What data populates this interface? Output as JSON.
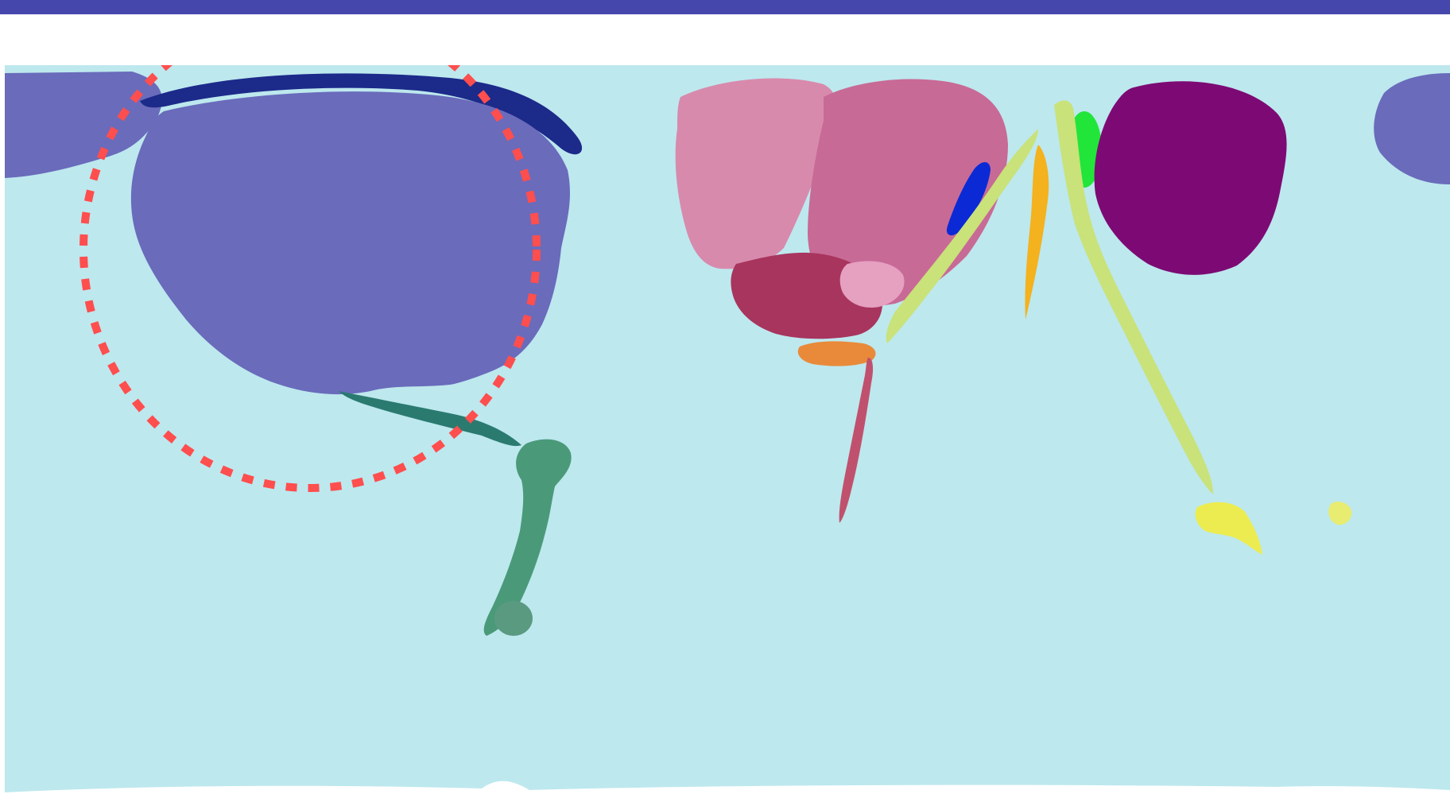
{
  "slide": {
    "accent_color": "#4647ac",
    "background_color": "#ffffff"
  },
  "map": {
    "type": "cartogram world map",
    "ocean_color": "#bde8ee",
    "regions": [
      {
        "id": "north-america",
        "color": "#6a6bbb"
      },
      {
        "id": "north-america-arctic",
        "color": "#1c2a8a"
      },
      {
        "id": "alaska",
        "color": "#6a6bbb"
      },
      {
        "id": "east-russia-edge",
        "color": "#6a6bbb"
      },
      {
        "id": "central-america",
        "color": "#2a7a70"
      },
      {
        "id": "south-america",
        "color": "#4a9a7a"
      },
      {
        "id": "falklands",
        "color": "#5a9a80"
      },
      {
        "id": "western-europe",
        "color": "#d88aac"
      },
      {
        "id": "central-europe",
        "color": "#c86a96"
      },
      {
        "id": "southern-europe",
        "color": "#a8355e"
      },
      {
        "id": "eastern-europe",
        "color": "#e6a0c0"
      },
      {
        "id": "middle-east-blue",
        "color": "#0b2ad6"
      },
      {
        "id": "central-asia-green",
        "color": "#22e53a"
      },
      {
        "id": "east-asia",
        "color": "#7d0a74"
      },
      {
        "id": "south-asia",
        "color": "#f3b21e"
      },
      {
        "id": "southeast-asia-strands",
        "color": "#c9e27a"
      },
      {
        "id": "australia",
        "color": "#ecec50"
      },
      {
        "id": "new-zealand",
        "color": "#e8ec70"
      },
      {
        "id": "africa",
        "color": "#e98a3a"
      },
      {
        "id": "southern-africa-strand",
        "color": "#c0516e"
      },
      {
        "id": "antarctica",
        "color": "#ffffff"
      }
    ],
    "highlight": {
      "shape": "dotted circle",
      "color": "#ff4e4e",
      "target": "north-america"
    }
  }
}
